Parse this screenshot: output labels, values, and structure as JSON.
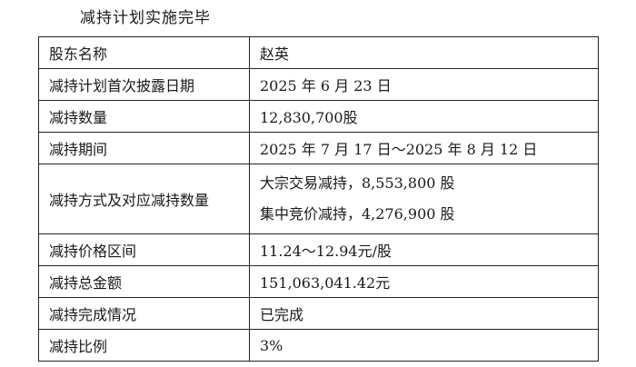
{
  "heading": "减持计划实施完毕",
  "rows": [
    {
      "label": "股东名称",
      "value": "赵英"
    },
    {
      "label": "减持计划首次披露日期",
      "value": "2025 年 6 月 23 日"
    },
    {
      "label": "减持数量",
      "value": "12,830,700股"
    },
    {
      "label": "减持期间",
      "value": "2025 年 7 月 17 日～2025 年 8 月 12 日"
    },
    {
      "label": "减持方式及对应减持数量",
      "values": [
        "大宗交易减持，8,553,800 股",
        "集中竞价减持，4,276,900 股"
      ]
    },
    {
      "label": "减持价格区间",
      "value": "11.24～12.94元/股"
    },
    {
      "label": "减持总金额",
      "value": "151,063,041.42元"
    },
    {
      "label": "减持完成情况",
      "value": "已完成"
    },
    {
      "label": "减持比例",
      "value": "3%"
    }
  ]
}
